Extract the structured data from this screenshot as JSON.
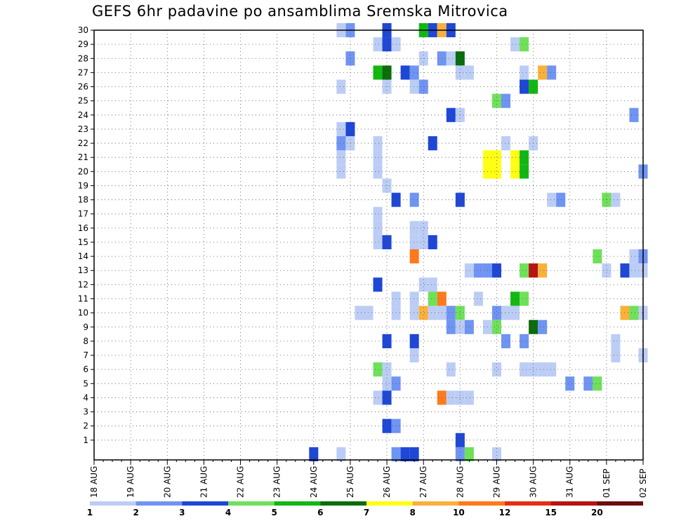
{
  "title": "GEFS 6hr padavine po ansamblima Sremska Mitrovica",
  "chart_data": {
    "type": "heatmap",
    "title": "GEFS 6hr padavine po ansamblima Sremska Mitrovica",
    "x_labels": [
      "18 AUG",
      "19 AUG",
      "20 AUG",
      "21 AUG",
      "22 AUG",
      "23 AUG",
      "24 AUG",
      "25 AUG",
      "26 AUG",
      "27 AUG",
      "28 AUG",
      "29 AUG",
      "30 AUG",
      "31 AUG",
      "01 SEP",
      "02 SEP"
    ],
    "y_labels": [
      "1",
      "2",
      "3",
      "4",
      "5",
      "6",
      "7",
      "8",
      "9",
      "10",
      "11",
      "12",
      "13",
      "14",
      "15",
      "16",
      "17",
      "18",
      "19",
      "20",
      "21",
      "22",
      "23",
      "24",
      "25",
      "26",
      "27",
      "28",
      "29",
      "30"
    ],
    "x_range": [
      0,
      60
    ],
    "y_range": [
      0,
      30
    ],
    "grid": true,
    "legend": {
      "position": "bottom",
      "labels": [
        "1",
        "2",
        "3",
        "4",
        "5",
        "6",
        "7",
        "8",
        "10",
        "12",
        "15",
        "20"
      ],
      "colors": [
        "#bccdf5",
        "#6f94f2",
        "#1f47d6",
        "#6fe05a",
        "#12b712",
        "#0b6c0b",
        "#ffff14",
        "#f9b13a",
        "#ff7a1c",
        "#e23015",
        "#b81212",
        "#6b0d0d"
      ]
    },
    "cells": [
      [
        27,
        30,
        1
      ],
      [
        28,
        30,
        2
      ],
      [
        32,
        30,
        3
      ],
      [
        36,
        30,
        5
      ],
      [
        37,
        30,
        3
      ],
      [
        38,
        30,
        8
      ],
      [
        39,
        30,
        3
      ],
      [
        31,
        29,
        1
      ],
      [
        32,
        29,
        3
      ],
      [
        33,
        29,
        1
      ],
      [
        46,
        29,
        1
      ],
      [
        47,
        29,
        4
      ],
      [
        28,
        28,
        2
      ],
      [
        36,
        28,
        1
      ],
      [
        38,
        28,
        2
      ],
      [
        39,
        28,
        1
      ],
      [
        40,
        28,
        6
      ],
      [
        31,
        27,
        5
      ],
      [
        32,
        27,
        6
      ],
      [
        34,
        27,
        3
      ],
      [
        35,
        27,
        2
      ],
      [
        40,
        27,
        1
      ],
      [
        41,
        27,
        1
      ],
      [
        47,
        27,
        1
      ],
      [
        49,
        27,
        8
      ],
      [
        50,
        27,
        2
      ],
      [
        27,
        26,
        1
      ],
      [
        32,
        26,
        1
      ],
      [
        35,
        26,
        1
      ],
      [
        36,
        26,
        2
      ],
      [
        47,
        26,
        3
      ],
      [
        48,
        26,
        5
      ],
      [
        44,
        25,
        4
      ],
      [
        45,
        25,
        2
      ],
      [
        39,
        24,
        3
      ],
      [
        40,
        24,
        1
      ],
      [
        59,
        24,
        2
      ],
      [
        27,
        23,
        1
      ],
      [
        28,
        23,
        3
      ],
      [
        27,
        22,
        2
      ],
      [
        28,
        22,
        1
      ],
      [
        31,
        22,
        1
      ],
      [
        37,
        22,
        3
      ],
      [
        45,
        22,
        1
      ],
      [
        48,
        22,
        1
      ],
      [
        27,
        21,
        1
      ],
      [
        31,
        21,
        1
      ],
      [
        43,
        21,
        7
      ],
      [
        44,
        21,
        7
      ],
      [
        46,
        21,
        7
      ],
      [
        47,
        21,
        5
      ],
      [
        27,
        20,
        1
      ],
      [
        31,
        20,
        1
      ],
      [
        43,
        20,
        7
      ],
      [
        44,
        20,
        7
      ],
      [
        46,
        20,
        7
      ],
      [
        47,
        20,
        5
      ],
      [
        60,
        20,
        2
      ],
      [
        32,
        19,
        1
      ],
      [
        33,
        18,
        3
      ],
      [
        35,
        18,
        2
      ],
      [
        40,
        18,
        3
      ],
      [
        50,
        18,
        1
      ],
      [
        51,
        18,
        2
      ],
      [
        56,
        18,
        4
      ],
      [
        57,
        18,
        1
      ],
      [
        31,
        17,
        1
      ],
      [
        31,
        16,
        1
      ],
      [
        35,
        16,
        1
      ],
      [
        36,
        16,
        1
      ],
      [
        31,
        15,
        1
      ],
      [
        32,
        15,
        3
      ],
      [
        35,
        15,
        1
      ],
      [
        36,
        15,
        1
      ],
      [
        37,
        15,
        3
      ],
      [
        35,
        14,
        9
      ],
      [
        55,
        14,
        4
      ],
      [
        59,
        14,
        1
      ],
      [
        60,
        14,
        2
      ],
      [
        41,
        13,
        1
      ],
      [
        42,
        13,
        2
      ],
      [
        43,
        13,
        2
      ],
      [
        44,
        13,
        3
      ],
      [
        47,
        13,
        4
      ],
      [
        48,
        13,
        11
      ],
      [
        49,
        13,
        8
      ],
      [
        56,
        13,
        1
      ],
      [
        58,
        13,
        3
      ],
      [
        59,
        13,
        1
      ],
      [
        60,
        13,
        1
      ],
      [
        31,
        12,
        3
      ],
      [
        36,
        12,
        1
      ],
      [
        37,
        12,
        1
      ],
      [
        33,
        11,
        1
      ],
      [
        35,
        11,
        1
      ],
      [
        37,
        11,
        4
      ],
      [
        38,
        11,
        9
      ],
      [
        42,
        11,
        1
      ],
      [
        46,
        11,
        5
      ],
      [
        47,
        11,
        4
      ],
      [
        29,
        10,
        1
      ],
      [
        30,
        10,
        1
      ],
      [
        33,
        10,
        1
      ],
      [
        35,
        10,
        1
      ],
      [
        36,
        10,
        8
      ],
      [
        37,
        10,
        1
      ],
      [
        38,
        10,
        1
      ],
      [
        39,
        10,
        2
      ],
      [
        40,
        10,
        4
      ],
      [
        44,
        10,
        2
      ],
      [
        45,
        10,
        1
      ],
      [
        46,
        10,
        1
      ],
      [
        58,
        10,
        8
      ],
      [
        59,
        10,
        4
      ],
      [
        60,
        10,
        1
      ],
      [
        39,
        9,
        2
      ],
      [
        40,
        9,
        1
      ],
      [
        41,
        9,
        2
      ],
      [
        43,
        9,
        1
      ],
      [
        44,
        9,
        4
      ],
      [
        48,
        9,
        6
      ],
      [
        49,
        9,
        2
      ],
      [
        32,
        8,
        3
      ],
      [
        35,
        8,
        3
      ],
      [
        45,
        8,
        2
      ],
      [
        47,
        8,
        2
      ],
      [
        57,
        8,
        1
      ],
      [
        35,
        7,
        1
      ],
      [
        57,
        7,
        1
      ],
      [
        60,
        7,
        1
      ],
      [
        31,
        6,
        4
      ],
      [
        32,
        6,
        1
      ],
      [
        39,
        6,
        1
      ],
      [
        44,
        6,
        1
      ],
      [
        47,
        6,
        1
      ],
      [
        48,
        6,
        1
      ],
      [
        49,
        6,
        1
      ],
      [
        50,
        6,
        1
      ],
      [
        32,
        5,
        1
      ],
      [
        33,
        5,
        2
      ],
      [
        52,
        5,
        2
      ],
      [
        54,
        5,
        2
      ],
      [
        55,
        5,
        4
      ],
      [
        31,
        4,
        1
      ],
      [
        32,
        4,
        3
      ],
      [
        38,
        4,
        9
      ],
      [
        39,
        4,
        1
      ],
      [
        40,
        4,
        1
      ],
      [
        41,
        4,
        1
      ],
      [
        32,
        2,
        3
      ],
      [
        33,
        2,
        2
      ],
      [
        40,
        1,
        3
      ],
      [
        24,
        0,
        3
      ],
      [
        27,
        0,
        1
      ],
      [
        33,
        0,
        2
      ],
      [
        34,
        0,
        3
      ],
      [
        35,
        0,
        3
      ],
      [
        40,
        0,
        2
      ],
      [
        41,
        0,
        4
      ],
      [
        44,
        0,
        1
      ]
    ]
  }
}
